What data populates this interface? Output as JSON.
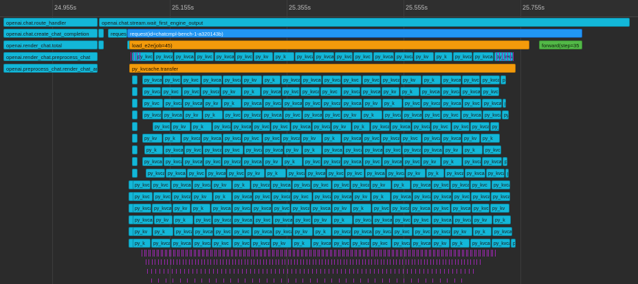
{
  "timeline": {
    "ticks": [
      "24.955s",
      "25.155s",
      "25.355s",
      "25.555s",
      "25.755s"
    ],
    "colors": {
      "route_handler": "#13b7d8",
      "request": "#2196f3",
      "load_e2e": "#f39a0b",
      "forward": "#52b847",
      "kvcache_transfer": "#f39a0b",
      "marker": "#9c27b0"
    }
  },
  "spans": {
    "route_handler": "openai.chat.route_handler",
    "wait_first": "openai.chat.stream.wait_first_engine_output",
    "create_completion": "openai.chat.create_chat_completion",
    "request_short": "reques",
    "request": "request(id=chatcmpl-bench-1-a320143b)",
    "render_total": "openai.render_chat.total",
    "load_e2e": "load_e2e(job=45)",
    "forward": "forward(step=35",
    "render_preprocess": "openai.render_chat.preprocess_chat",
    "preprocess_render": "openai.preprocess_chat.render_chat_ar",
    "kvcache_transfer": "py_kvcache.transfer",
    "kv_labels": [
      "py_kvcache",
      "py_kvcac",
      "py_kvca",
      "py_kvc",
      "py_kvcach",
      "py_kvcache.t",
      "py_kv",
      "py_k"
    ]
  }
}
